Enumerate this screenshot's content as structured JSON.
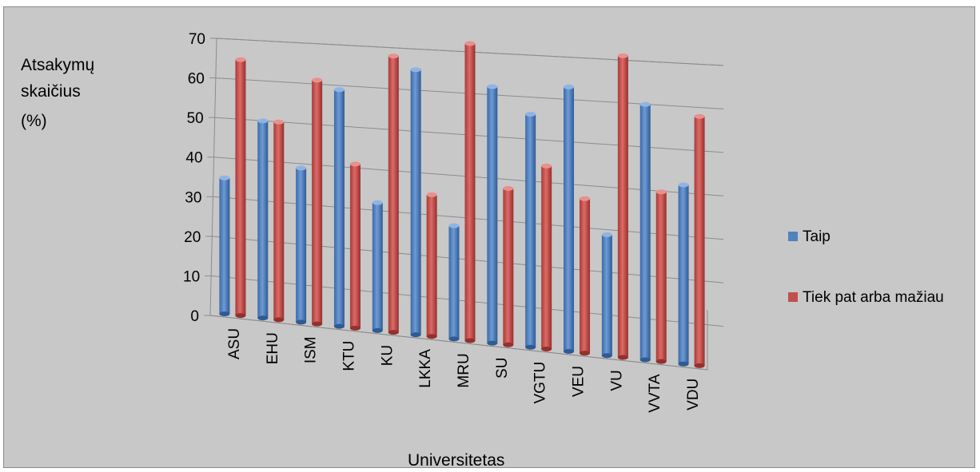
{
  "chart_data": {
    "type": "bar",
    "ylabel_lines": [
      "Atsakymų",
      "skaičius",
      "(%)"
    ],
    "xlabel": "Universitetas",
    "categories": [
      "ASU",
      "EHU",
      "ISM",
      "KTU",
      "KU",
      "LKKA",
      "MRU",
      "SU",
      "VGTU",
      "VEU",
      "VU",
      "VVTA",
      "VDU"
    ],
    "series": [
      {
        "name": "Taip",
        "color": "#4f81bd",
        "values": [
          35,
          50,
          39,
          59,
          32,
          65,
          28,
          62,
          56,
          63,
          29,
          60,
          42
        ]
      },
      {
        "name": "Tiek pat arba mažiau",
        "color": "#c0504d",
        "values": [
          65,
          50,
          61,
          41,
          68,
          35,
          72,
          38,
          44,
          37,
          71,
          40,
          58
        ]
      }
    ],
    "yticks": [
      0,
      10,
      20,
      30,
      40,
      50,
      60,
      70
    ],
    "ylim": [
      0,
      70
    ],
    "grid": true,
    "legend": "right"
  }
}
